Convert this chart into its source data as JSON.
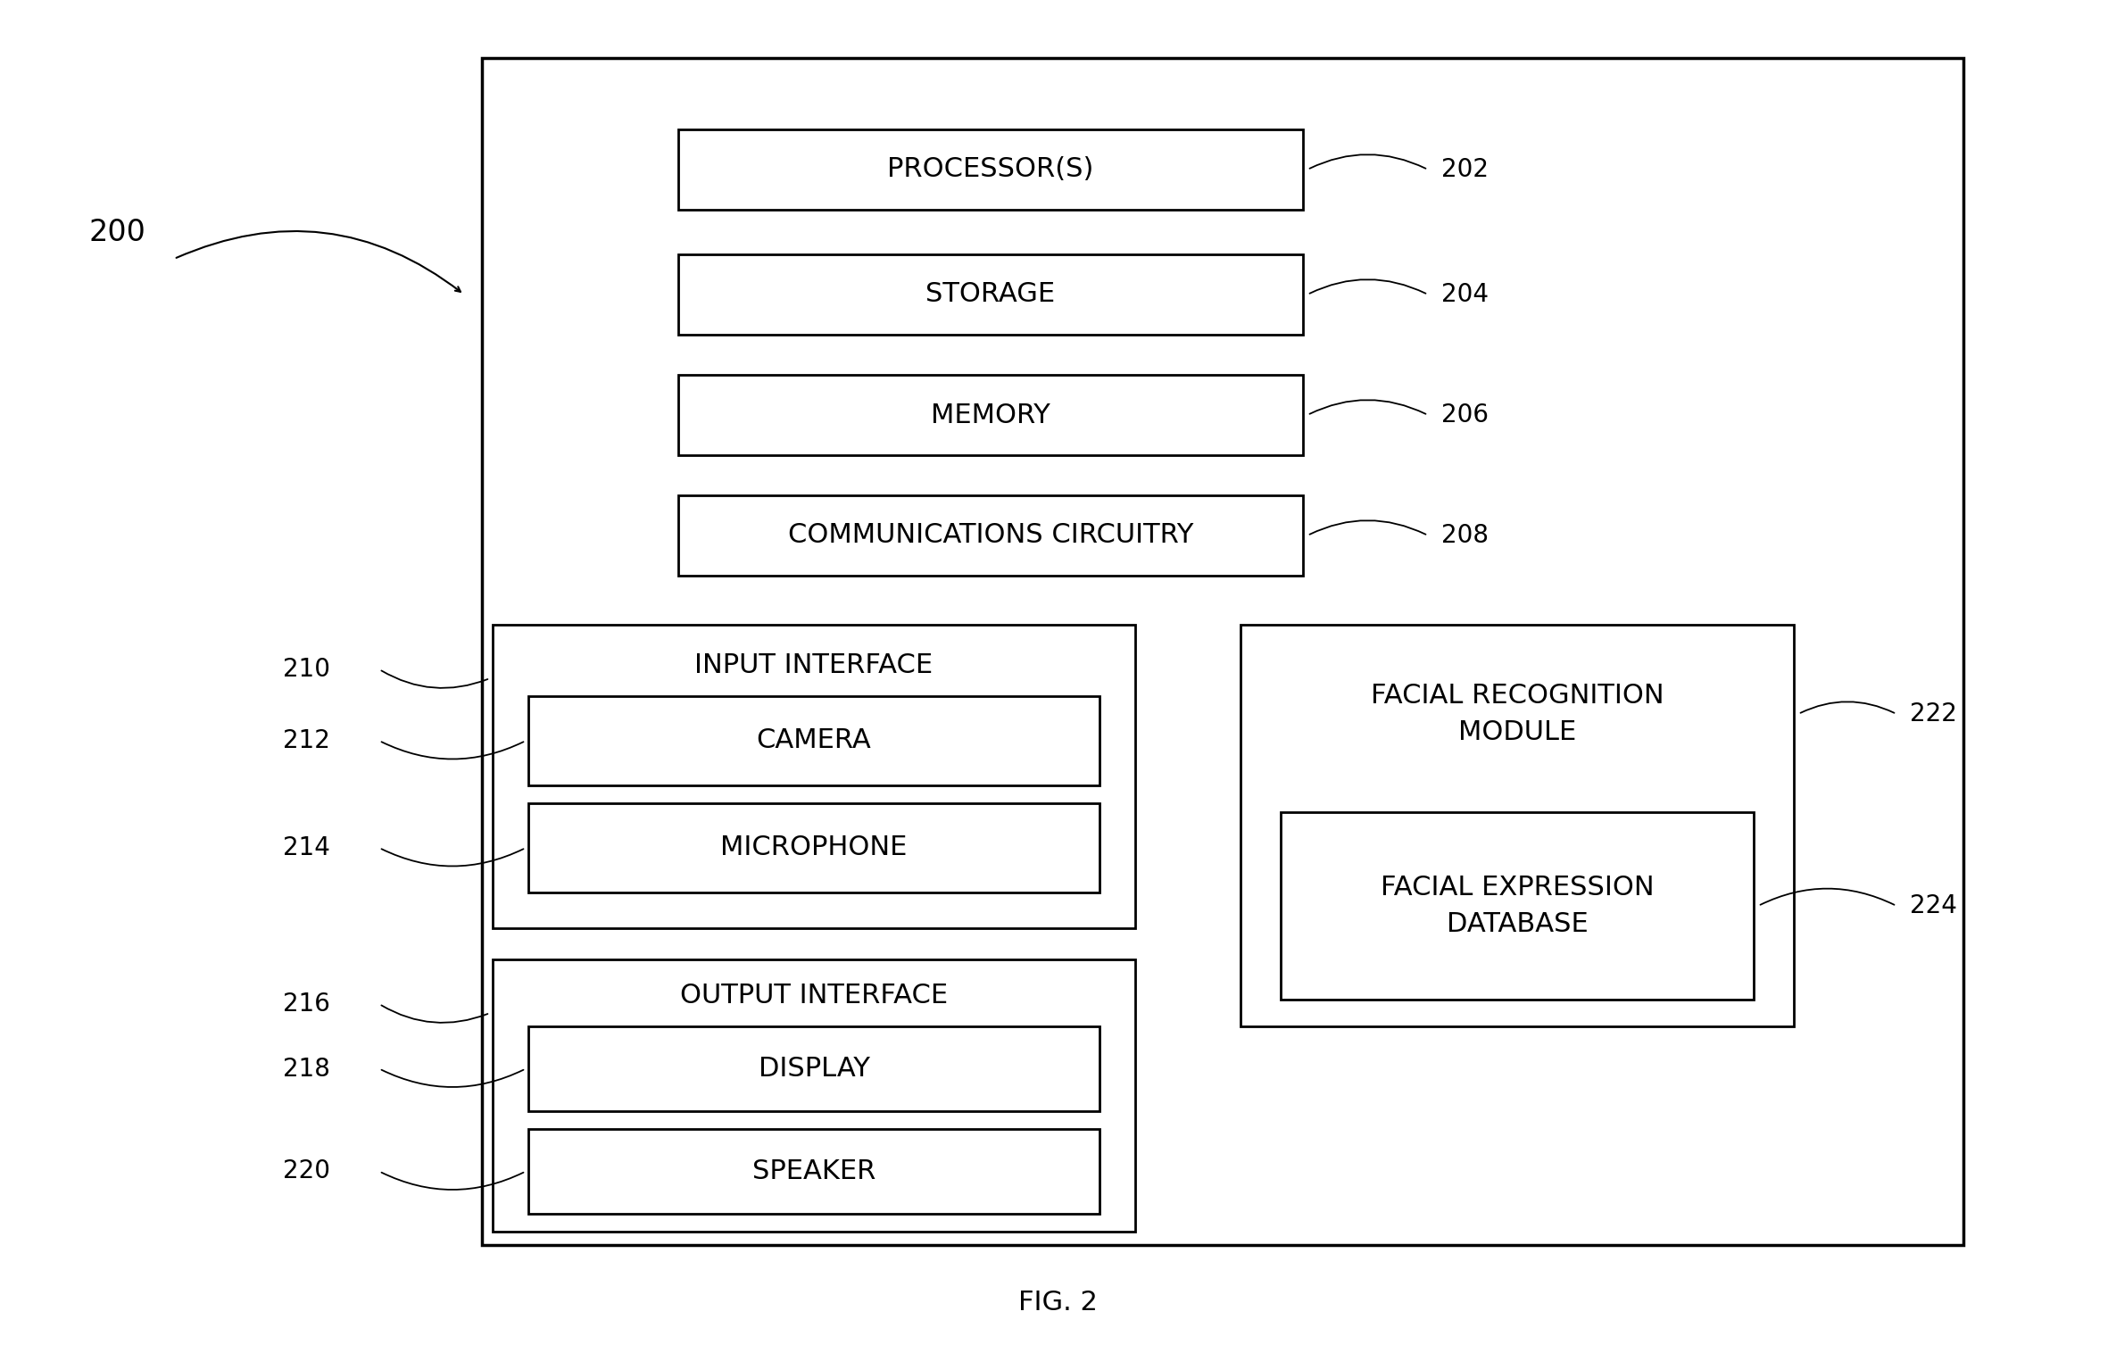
{
  "fig_label": "FIG. 2",
  "bg_color": "#ffffff",
  "text_color": "#000000",
  "font_family": "DejaVu Sans",
  "label_200": "200",
  "label_202": "202",
  "label_204": "204",
  "label_206": "206",
  "label_208": "208",
  "label_210": "210",
  "label_212": "212",
  "label_214": "214",
  "label_216": "216",
  "label_218": "218",
  "label_220": "220",
  "label_222": "222",
  "label_224": "224",
  "text_processor": "PROCESSOR(S)",
  "text_storage": "STORAGE",
  "text_memory": "MEMORY",
  "text_comm": "COMMUNICATIONS CIRCUITRY",
  "text_input": "INPUT INTERFACE",
  "text_camera": "CAMERA",
  "text_micro": "MICROPHONE",
  "text_output": "OUTPUT INTERFACE",
  "text_display": "DISPLAY",
  "text_speaker": "SPEAKER",
  "text_facial_rec": "FACIAL RECOGNITION\nMODULE",
  "text_facial_exp": "FACIAL EXPRESSION\nDATABASE"
}
